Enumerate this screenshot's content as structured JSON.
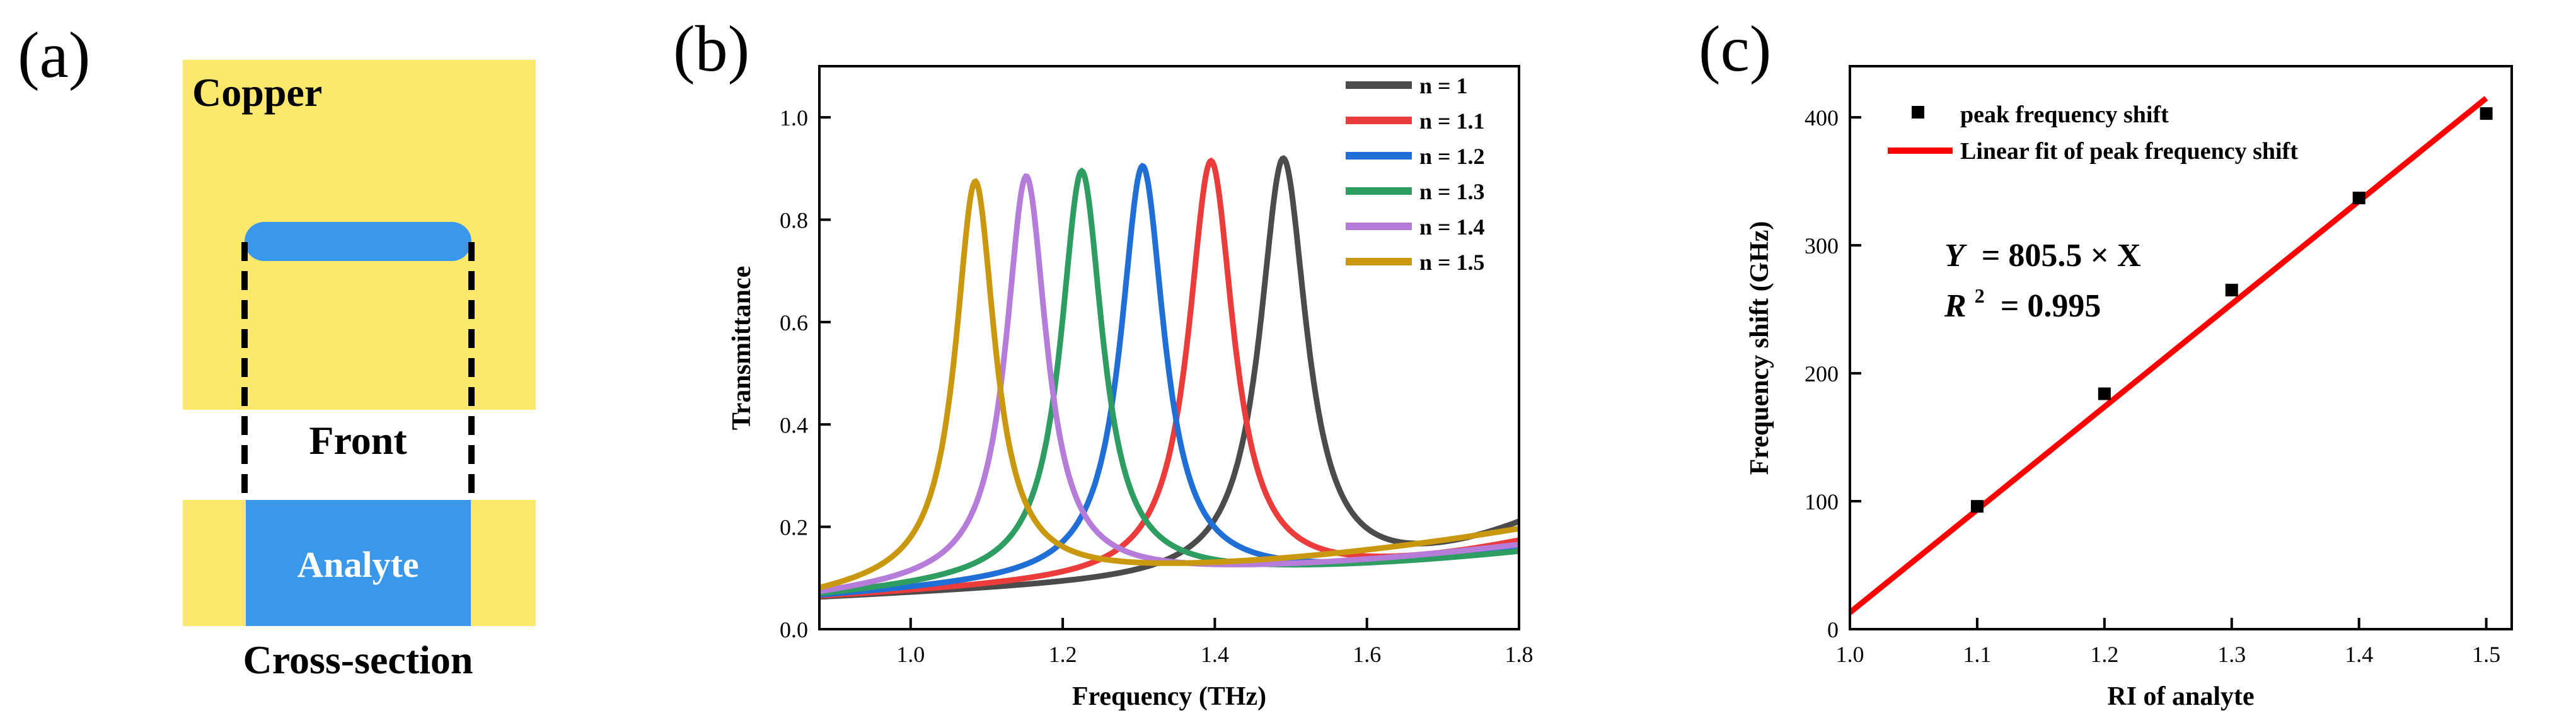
{
  "panels": {
    "a": {
      "tag": "(a)",
      "copper_label": "Copper",
      "front_label": "Front",
      "analyte_label": "Analyte",
      "cross_section_label": "Cross-section",
      "colors": {
        "copper": "#FDE86E",
        "analyte": "#3A98EA"
      }
    },
    "b": {
      "tag": "(b)"
    },
    "c": {
      "tag": "(c)"
    }
  },
  "chart_data": [
    {
      "panel": "b",
      "type": "line",
      "title": "",
      "xlabel": "Frequency (THz)",
      "ylabel": "Transmittance",
      "xlim": [
        0.88,
        1.8
      ],
      "ylim": [
        0,
        1.1
      ],
      "xticks": [
        1.0,
        1.2,
        1.4,
        1.6,
        1.8
      ],
      "xtick_labels": [
        "1.0",
        "1.2",
        "1.4",
        "1.6",
        "1.8"
      ],
      "yticks": [
        0.0,
        0.2,
        0.4,
        0.6,
        0.8,
        1.0
      ],
      "ytick_labels": [
        "0.0",
        "0.2",
        "0.4",
        "0.6",
        "0.8",
        "1.0"
      ],
      "legend_position": "top-right",
      "series": [
        {
          "name": "n = 1",
          "color": "#4B4B4B",
          "peak_x": 1.49,
          "peak_y": 0.92,
          "end_y": 0.21
        },
        {
          "name": "n = 1.1",
          "color": "#EC3B3B",
          "peak_x": 1.395,
          "peak_y": 0.915,
          "end_y": 0.175
        },
        {
          "name": "n = 1.2",
          "color": "#1F6FD6",
          "peak_x": 1.305,
          "peak_y": 0.905,
          "end_y": 0.16
        },
        {
          "name": "n = 1.3",
          "color": "#2E9D62",
          "peak_x": 1.225,
          "peak_y": 0.895,
          "end_y": 0.155
        },
        {
          "name": "n = 1.4",
          "color": "#B57CD9",
          "peak_x": 1.152,
          "peak_y": 0.885,
          "end_y": 0.17
        },
        {
          "name": "n = 1.5",
          "color": "#C9980E",
          "peak_x": 1.085,
          "peak_y": 0.875,
          "end_y": 0.205
        }
      ]
    },
    {
      "panel": "c",
      "type": "scatter",
      "title": "",
      "xlabel": "RI of analyte",
      "ylabel": "Frequency shift (GHz)",
      "xlim": [
        1.0,
        1.52
      ],
      "ylim": [
        0,
        440
      ],
      "xticks": [
        1.0,
        1.1,
        1.2,
        1.3,
        1.4,
        1.5
      ],
      "xtick_labels": [
        "1.0",
        "1.1",
        "1.2",
        "1.3",
        "1.4",
        "1.5"
      ],
      "yticks": [
        0,
        100,
        200,
        300,
        400
      ],
      "ytick_labels": [
        "0",
        "100",
        "200",
        "300",
        "400"
      ],
      "legend_position": "top-left",
      "points": {
        "name": "peak frequency shift",
        "x": [
          1.1,
          1.2,
          1.3,
          1.4,
          1.5
        ],
        "y": [
          96,
          184,
          265,
          337,
          403
        ]
      },
      "fit": {
        "name": "Linear fit of peak frequency shift",
        "x": [
          1.0,
          1.5
        ],
        "y": [
          13,
          415
        ],
        "color": "#FF0000"
      },
      "annotation": {
        "equation_lhs": "Y",
        "equation_rhs": "= 805.5 × X",
        "r2_lhs": "R",
        "r2_sup": "2",
        "r2_rhs": "= 0.995"
      }
    }
  ]
}
